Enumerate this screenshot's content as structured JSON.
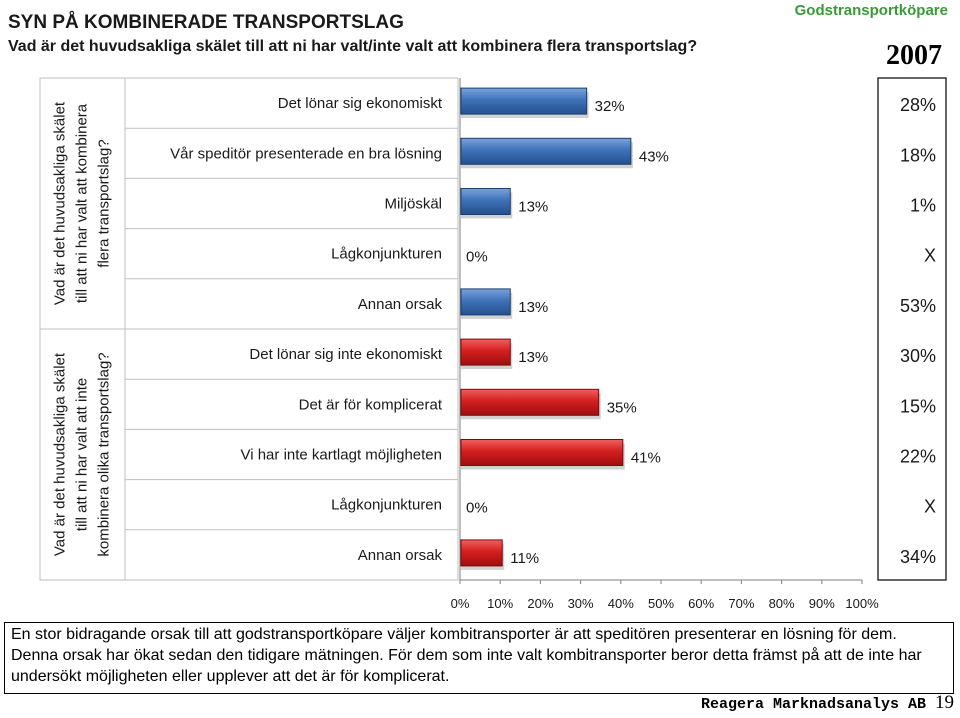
{
  "header": {
    "title": "SYN PÅ KOMBINERADE TRANSPORTSLAG",
    "subtitle": "Vad är det huvudsakliga skälet till att ni har valt/inte valt att kombinera flera transportslag?",
    "brand": "Godstransportköpare",
    "year": "2007"
  },
  "colors": {
    "blue": "#3f72b8",
    "red": "#d41f1f",
    "brand": "#3a9a3a"
  },
  "chart_data": {
    "type": "bar",
    "orientation": "horizontal",
    "xlim": [
      0,
      100
    ],
    "x_ticks": [
      "0%",
      "10%",
      "20%",
      "30%",
      "40%",
      "50%",
      "60%",
      "70%",
      "80%",
      "90%",
      "100%"
    ],
    "groups": [
      {
        "label_lines": [
          "Vad är det huvudsakliga skälet",
          "till att ni har valt att kombinera",
          "flera transportslag?"
        ],
        "color": "#3f72b8",
        "items": [
          {
            "category": "Det lönar sig ekonomiskt",
            "value": 32,
            "label": "32%",
            "compare": "28%"
          },
          {
            "category": "Vår speditör presenterade en bra lösning",
            "value": 43,
            "label": "43%",
            "compare": "18%"
          },
          {
            "category": "Miljöskäl",
            "value": 13,
            "label": "13%",
            "compare": "1%"
          },
          {
            "category": "Lågkonjunkturen",
            "value": 0,
            "label": "0%",
            "compare": "X"
          },
          {
            "category": "Annan orsak",
            "value": 13,
            "label": "13%",
            "compare": "53%"
          }
        ]
      },
      {
        "label_lines": [
          "Vad är det huvudsakliga skälet",
          "till att ni har valt att inte",
          "kombinera olika transportslag?"
        ],
        "color": "#d41f1f",
        "items": [
          {
            "category": "Det lönar sig inte ekonomiskt",
            "value": 13,
            "label": "13%",
            "compare": "30%"
          },
          {
            "category": "Det är för komplicerat",
            "value": 35,
            "label": "35%",
            "compare": "15%"
          },
          {
            "category": "Vi har inte kartlagt möjligheten",
            "value": 41,
            "label": "41%",
            "compare": "22%"
          },
          {
            "category": "Lågkonjunkturen",
            "value": 0,
            "label": "0%",
            "compare": "X"
          },
          {
            "category": "Annan orsak",
            "value": 11,
            "label": "11%",
            "compare": "34%"
          }
        ]
      }
    ]
  },
  "note": "En stor bidragande orsak till att godstransportköpare väljer kombitransporter är att speditören presenterar en lösning för dem. Denna orsak har ökat sedan den tidigare mätningen. För dem som inte valt kombitransporter beror detta främst på att de inte har undersökt möjligheten eller upplever att det är för komplicerat.",
  "footer": {
    "company": "Reagera Marknadsanalys AB",
    "page": "19"
  }
}
